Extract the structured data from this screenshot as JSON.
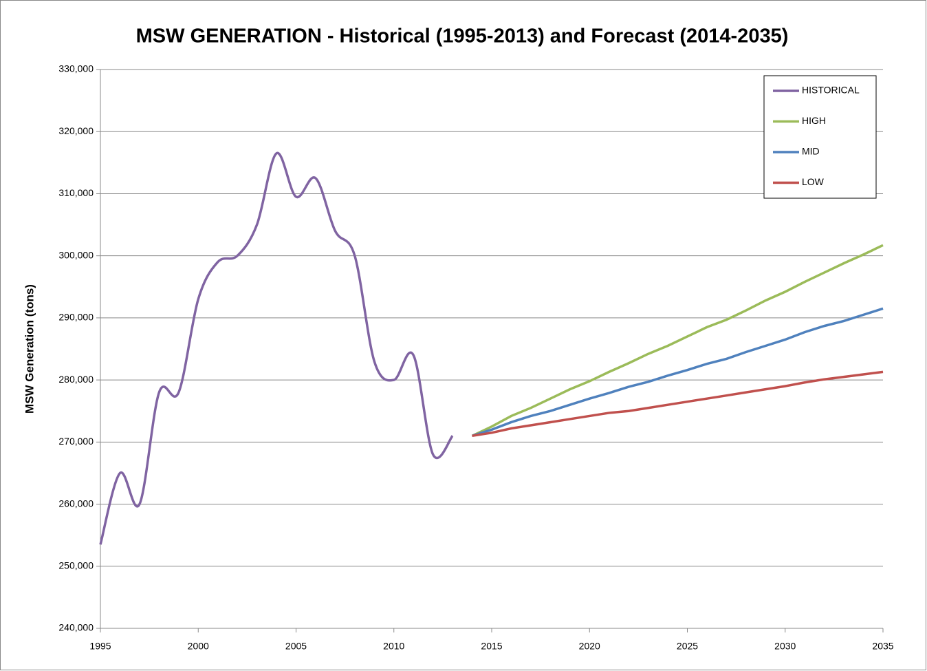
{
  "chart_data": {
    "type": "line",
    "title": "MSW GENERATION - Historical (1995-2013) and Forecast (2014-2035)",
    "ylabel": "MSW Generation (tons)",
    "xlim": [
      1995,
      2035
    ],
    "xticks": [
      1995,
      2000,
      2005,
      2010,
      2015,
      2020,
      2025,
      2030,
      2035
    ],
    "ylim": [
      240000,
      330000
    ],
    "yticks": [
      {
        "value": 240000,
        "label": "240,000"
      },
      {
        "value": 250000,
        "label": "250,000"
      },
      {
        "value": 260000,
        "label": "260,000"
      },
      {
        "value": 270000,
        "label": "270,000"
      },
      {
        "value": 280000,
        "label": "280,000"
      },
      {
        "value": 290000,
        "label": "290,000"
      },
      {
        "value": 300000,
        "label": "300,000"
      },
      {
        "value": 310000,
        "label": "310,000"
      },
      {
        "value": 320000,
        "label": "320,000"
      },
      {
        "value": 330000,
        "label": "330,000"
      }
    ],
    "grid": true,
    "legend": "upper right",
    "series": [
      {
        "name": "HISTORICAL",
        "color": "#8064a2",
        "smooth": true,
        "x": [
          1995,
          1996,
          1997,
          1998,
          1999,
          2000,
          2001,
          2002,
          2003,
          2004,
          2005,
          2006,
          2007,
          2008,
          2009,
          2010,
          2011,
          2012,
          2013
        ],
        "values": [
          253500,
          265000,
          260000,
          278000,
          278000,
          293000,
          299000,
          300000,
          305000,
          316500,
          309500,
          312500,
          304000,
          300000,
          283000,
          280000,
          284000,
          268000,
          271000
        ]
      },
      {
        "name": "HIGH",
        "color": "#9bbb59",
        "x": [
          2014,
          2015,
          2016,
          2017,
          2018,
          2019,
          2020,
          2021,
          2022,
          2023,
          2024,
          2025,
          2026,
          2027,
          2028,
          2029,
          2030,
          2031,
          2032,
          2033,
          2034,
          2035
        ],
        "values": [
          271000,
          272500,
          274200,
          275500,
          277000,
          278500,
          279800,
          281300,
          282700,
          284200,
          285500,
          287000,
          288500,
          289700,
          291200,
          292800,
          294200,
          295800,
          297300,
          298800,
          300200,
          301700
        ]
      },
      {
        "name": "MID",
        "color": "#4f81bd",
        "x": [
          2014,
          2015,
          2016,
          2017,
          2018,
          2019,
          2020,
          2021,
          2022,
          2023,
          2024,
          2025,
          2026,
          2027,
          2028,
          2029,
          2030,
          2031,
          2032,
          2033,
          2034,
          2035
        ],
        "values": [
          271000,
          272000,
          273200,
          274200,
          275000,
          276000,
          277000,
          277900,
          278900,
          279700,
          280700,
          281600,
          282600,
          283400,
          284500,
          285500,
          286500,
          287700,
          288700,
          289500,
          290500,
          291500
        ]
      },
      {
        "name": "LOW",
        "color": "#c0504d",
        "x": [
          2014,
          2015,
          2016,
          2017,
          2018,
          2019,
          2020,
          2021,
          2022,
          2023,
          2024,
          2025,
          2026,
          2027,
          2028,
          2029,
          2030,
          2031,
          2032,
          2033,
          2034,
          2035
        ],
        "values": [
          271000,
          271500,
          272200,
          272700,
          273200,
          273700,
          274200,
          274700,
          275000,
          275500,
          276000,
          276500,
          277000,
          277500,
          278000,
          278500,
          279000,
          279600,
          280100,
          280500,
          280900,
          281300
        ]
      }
    ]
  }
}
